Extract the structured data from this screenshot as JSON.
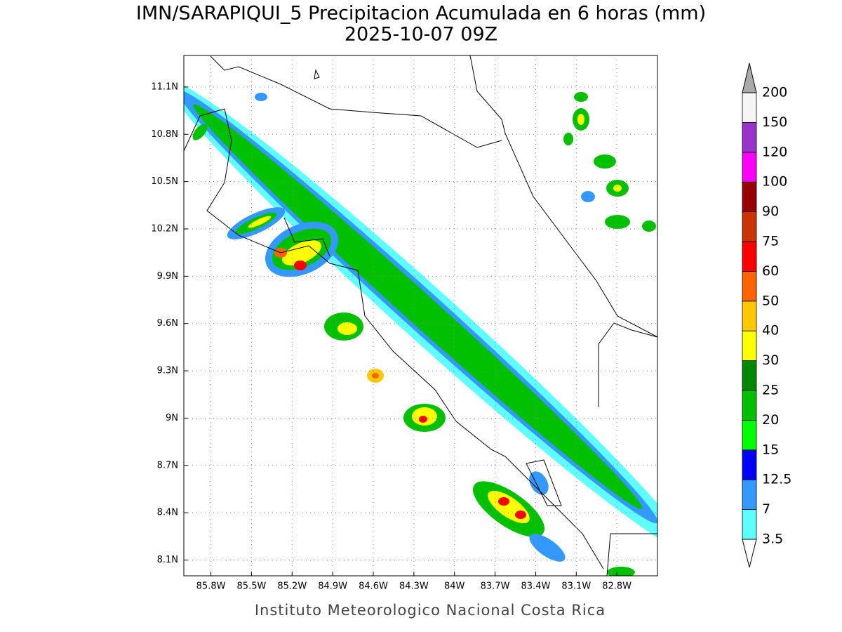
{
  "map": {
    "title": "IMN/SARAPIQUI_5 Precipitacion Acumulada en 6 horas (mm)",
    "subtitle": "2025-10-07 09Z",
    "footer": "Instituto Meteorologico Nacional Costa Rica",
    "xlim": [
      -86.0,
      -82.5
    ],
    "ylim": [
      8.0,
      11.3
    ],
    "xticks": [
      {
        "value": -85.8,
        "label": "85.8W"
      },
      {
        "value": -85.5,
        "label": "85.5W"
      },
      {
        "value": -85.2,
        "label": "85.2W"
      },
      {
        "value": -84.9,
        "label": "84.9W"
      },
      {
        "value": -84.6,
        "label": "84.6W"
      },
      {
        "value": -84.3,
        "label": "84.3W"
      },
      {
        "value": -84.0,
        "label": "84W"
      },
      {
        "value": -83.7,
        "label": "83.7W"
      },
      {
        "value": -83.4,
        "label": "83.4W"
      },
      {
        "value": -83.1,
        "label": "83.1W"
      },
      {
        "value": -82.8,
        "label": "82.8W"
      }
    ],
    "yticks": [
      {
        "value": 8.1,
        "label": "8.1N"
      },
      {
        "value": 8.4,
        "label": "8.4N"
      },
      {
        "value": 8.7,
        "label": "8.7N"
      },
      {
        "value": 9.0,
        "label": "9N"
      },
      {
        "value": 9.3,
        "label": "9.3N"
      },
      {
        "value": 9.6,
        "label": "9.6N"
      },
      {
        "value": 9.9,
        "label": "9.9N"
      },
      {
        "value": 10.2,
        "label": "10.2N"
      },
      {
        "value": 10.5,
        "label": "10.5N"
      },
      {
        "value": 10.8,
        "label": "10.8N"
      },
      {
        "value": 11.1,
        "label": "11.1N"
      }
    ],
    "grid": true,
    "levels": [
      3.5,
      7,
      12.5,
      15,
      20,
      25,
      30,
      40,
      50,
      60,
      75,
      90,
      100,
      120,
      150,
      200
    ],
    "colors": [
      "#5fffff",
      "#3399ff",
      "#0000ff",
      "#00ff00",
      "#00c000",
      "#008800",
      "#ffff00",
      "#ffc800",
      "#ff6400",
      "#ff0000",
      "#cc3300",
      "#990000",
      "#ff00ff",
      "#9933cc",
      "#f5f5f5"
    ],
    "under_color": "#ffffff",
    "over_color": "#aaaaaa"
  }
}
